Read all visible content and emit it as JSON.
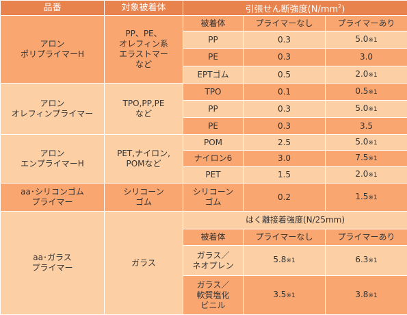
{
  "header": {
    "product": "品番",
    "substrate": "対象被着体",
    "strength": "引張せん断強度(N/mm",
    "strength_sup": "2",
    "strength_end": ")"
  },
  "groups": [
    {
      "product": "アロン\nポリプライマーH",
      "substrates": "PP、PE、\nオレフィン系\nエラストマー\nなど",
      "columns": [
        "被着体",
        "プライマーなし",
        "プライマーあり"
      ],
      "rows": [
        {
          "substrate": "PP",
          "without": "0.3",
          "with": "5.0",
          "with_note": "※1"
        },
        {
          "substrate": "PE",
          "without": "0.3",
          "with": "3.0"
        },
        {
          "substrate": "EPTゴム",
          "without": "0.5",
          "with": "2.0",
          "with_note": "※1"
        }
      ]
    },
    {
      "product": "アロン\nオレフィンプライマー",
      "substrates": "TPO,PP,PE\nなど",
      "rows": [
        {
          "substrate": "TPO",
          "without": "0.1",
          "with": "0.5",
          "with_note": "※1"
        },
        {
          "substrate": "PP",
          "without": "0.3",
          "with": "5.0",
          "with_note": "※1"
        },
        {
          "substrate": "PE",
          "without": "0.3",
          "with": "3.5"
        }
      ]
    },
    {
      "product": "アロン\nエンプライマーH",
      "substrates": "PET,ナイロン,\nPOMなど",
      "rows": [
        {
          "substrate": "POM",
          "without": "2.5",
          "with": "5.0",
          "with_note": "※1"
        },
        {
          "substrate": "ナイロン6",
          "without": "3.0",
          "with": "7.5",
          "with_note": "※1"
        },
        {
          "substrate": "PET",
          "without": "1.5",
          "with": "2.0",
          "with_note": "※1"
        }
      ]
    },
    {
      "product": "aa･シリコンゴム\nプライマー",
      "substrates": "シリコーン\nゴム",
      "rows": [
        {
          "substrate": "シリコーン\nゴム",
          "without": "0.2",
          "with": "1.5",
          "with_note": "※1"
        }
      ]
    },
    {
      "product": "aa･ガラス\nプライマー",
      "substrates": "ガラス",
      "subtitle": "はく離接着強度(N/25mm)",
      "columns": [
        "被着体",
        "プライマーなし",
        "プライマーあり"
      ],
      "rows": [
        {
          "substrate": "ガラス／\nネオプレン",
          "without": "5.8",
          "without_note": "※1",
          "with": "6.3",
          "with_note": "※1"
        },
        {
          "substrate": "ガラス／\n軟質塩化\nビニル",
          "without": "3.5",
          "without_note": "※1",
          "with": "3.8",
          "with_note": "※1"
        }
      ]
    }
  ]
}
